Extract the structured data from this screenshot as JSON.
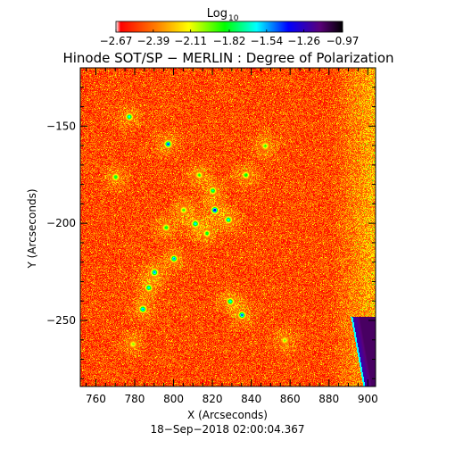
{
  "chart_data": {
    "type": "heatmap",
    "title": "Hinode SOT/SP − MERLIN : Degree of Polarization",
    "xlabel": "X (Arcseconds)",
    "ylabel": "Y (Arcseconds)",
    "footer": "18−Sep−2018 02:00:04.367",
    "colorbar": {
      "label_main": "Log",
      "label_sub": "10",
      "tick_labels": [
        "−2.67",
        "−2.39",
        "−2.11",
        "−1.82",
        "−1.54",
        "−1.26",
        "−0.97"
      ],
      "range": [
        -2.67,
        -0.97
      ],
      "colormap": "rainbow"
    },
    "x_ticks": [
      760,
      780,
      800,
      820,
      840,
      860,
      880,
      900
    ],
    "y_ticks": [
      -150,
      -200,
      -250
    ],
    "xlim": [
      752,
      904
    ],
    "ylim": [
      -284,
      -120
    ],
    "typical_value": -2.5,
    "features": [
      {
        "kind": "network-patch",
        "x": 777,
        "y": -145,
        "value": -1.6
      },
      {
        "kind": "network-patch",
        "x": 797,
        "y": -159,
        "value": -1.4
      },
      {
        "kind": "network-patch",
        "x": 813,
        "y": -175,
        "value": -1.9
      },
      {
        "kind": "network-patch",
        "x": 820,
        "y": -183,
        "value": -1.7
      },
      {
        "kind": "network-patch",
        "x": 821,
        "y": -193,
        "value": -1.3
      },
      {
        "kind": "network-patch",
        "x": 828,
        "y": -198,
        "value": -1.6
      },
      {
        "kind": "network-patch",
        "x": 811,
        "y": -200,
        "value": -1.6
      },
      {
        "kind": "network-patch",
        "x": 837,
        "y": -175,
        "value": -1.8
      },
      {
        "kind": "network-patch",
        "x": 817,
        "y": -205,
        "value": -1.8
      },
      {
        "kind": "network-patch",
        "x": 800,
        "y": -218,
        "value": -1.5
      },
      {
        "kind": "network-patch",
        "x": 790,
        "y": -225,
        "value": -1.5
      },
      {
        "kind": "network-patch",
        "x": 787,
        "y": -233,
        "value": -1.6
      },
      {
        "kind": "network-patch",
        "x": 784,
        "y": -244,
        "value": -1.5
      },
      {
        "kind": "network-patch",
        "x": 829,
        "y": -240,
        "value": -1.6
      },
      {
        "kind": "network-patch",
        "x": 835,
        "y": -247,
        "value": -1.4
      },
      {
        "kind": "network-patch",
        "x": 770,
        "y": -176,
        "value": -1.8
      },
      {
        "kind": "network-patch",
        "x": 805,
        "y": -193,
        "value": -1.9
      },
      {
        "kind": "network-patch",
        "x": 847,
        "y": -160,
        "value": -1.9
      },
      {
        "kind": "network-patch",
        "x": 796,
        "y": -202,
        "value": -1.8
      },
      {
        "kind": "network-patch",
        "x": 779,
        "y": -262,
        "value": -2.0
      },
      {
        "kind": "network-patch",
        "x": 857,
        "y": -260,
        "value": -2.0
      },
      {
        "kind": "edge-region",
        "x": 902,
        "y": -275,
        "value": -0.97
      }
    ]
  }
}
